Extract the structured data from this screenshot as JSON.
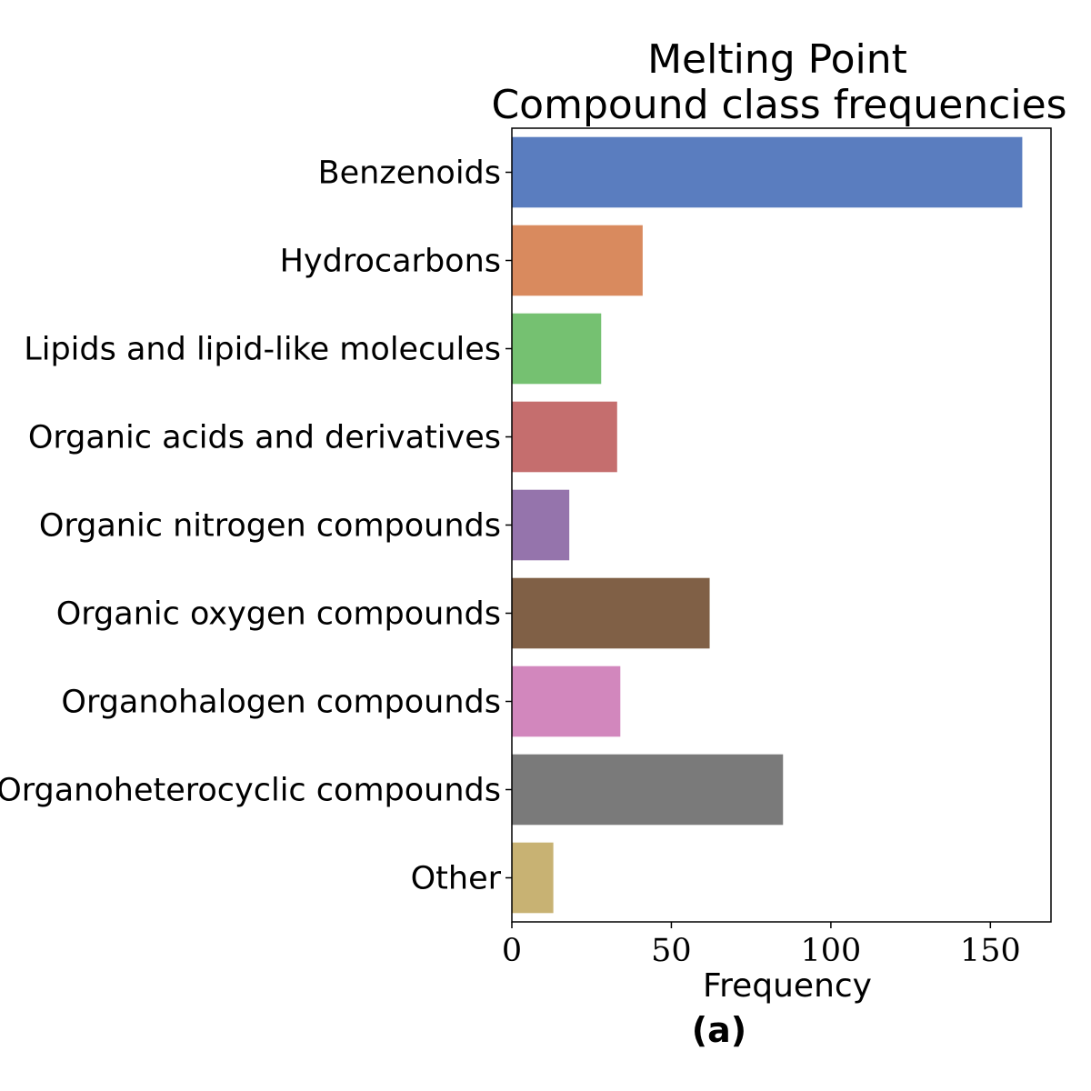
{
  "chart_data": {
    "type": "bar",
    "orientation": "horizontal",
    "title": [
      "Melting Point",
      "Compound class frequencies"
    ],
    "categories": [
      "Benzenoids",
      "Hydrocarbons",
      "Lipids and lipid-like molecules",
      "Organic acids and derivatives",
      "Organic nitrogen compounds",
      "Organic oxygen compounds",
      "Organohalogen compounds",
      "Organoheterocyclic compounds",
      "Other"
    ],
    "values": [
      160,
      41,
      28,
      33,
      18,
      62,
      34,
      85,
      13
    ],
    "colors": [
      "#5a7dbf",
      "#d98a5e",
      "#75c171",
      "#c56e6e",
      "#9574ac",
      "#806046",
      "#d287bd",
      "#7a7a7a",
      "#c8b273"
    ],
    "xlabel": "Frequency",
    "ylabel": "",
    "xlim": [
      0,
      169
    ],
    "xticks": [
      0,
      50,
      100,
      150
    ],
    "grid": false,
    "panel_label": "(a)"
  }
}
